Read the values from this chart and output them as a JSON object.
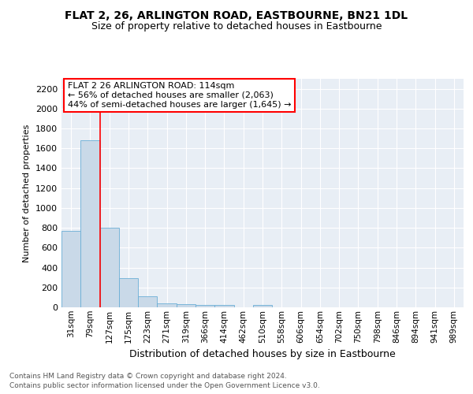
{
  "title": "FLAT 2, 26, ARLINGTON ROAD, EASTBOURNE, BN21 1DL",
  "subtitle": "Size of property relative to detached houses in Eastbourne",
  "xlabel": "Distribution of detached houses by size in Eastbourne",
  "ylabel": "Number of detached properties",
  "footnote1": "Contains HM Land Registry data © Crown copyright and database right 2024.",
  "footnote2": "Contains public sector information licensed under the Open Government Licence v3.0.",
  "annotation_line1": "FLAT 2 26 ARLINGTON ROAD: 114sqm",
  "annotation_line2": "← 56% of detached houses are smaller (2,063)",
  "annotation_line3": "44% of semi-detached houses are larger (1,645) →",
  "bar_color": "#c9d9e8",
  "bar_edge_color": "#6baed6",
  "bin_labels": [
    "31sqm",
    "79sqm",
    "127sqm",
    "175sqm",
    "223sqm",
    "271sqm",
    "319sqm",
    "366sqm",
    "414sqm",
    "462sqm",
    "510sqm",
    "558sqm",
    "606sqm",
    "654sqm",
    "702sqm",
    "750sqm",
    "798sqm",
    "846sqm",
    "894sqm",
    "941sqm",
    "989sqm"
  ],
  "bar_heights": [
    770,
    1680,
    800,
    295,
    110,
    40,
    28,
    22,
    20,
    0,
    22,
    0,
    0,
    0,
    0,
    0,
    0,
    0,
    0,
    0,
    0
  ],
  "ylim": [
    0,
    2300
  ],
  "yticks": [
    0,
    200,
    400,
    600,
    800,
    1000,
    1200,
    1400,
    1600,
    1800,
    2000,
    2200
  ],
  "background_color": "#e8eef5",
  "red_line_x": 1.5,
  "title_fontsize": 10,
  "subtitle_fontsize": 9,
  "ylabel_fontsize": 8,
  "xlabel_fontsize": 9,
  "ytick_fontsize": 8,
  "xtick_fontsize": 7.5,
  "footnote_fontsize": 6.5,
  "annot_fontsize": 8
}
